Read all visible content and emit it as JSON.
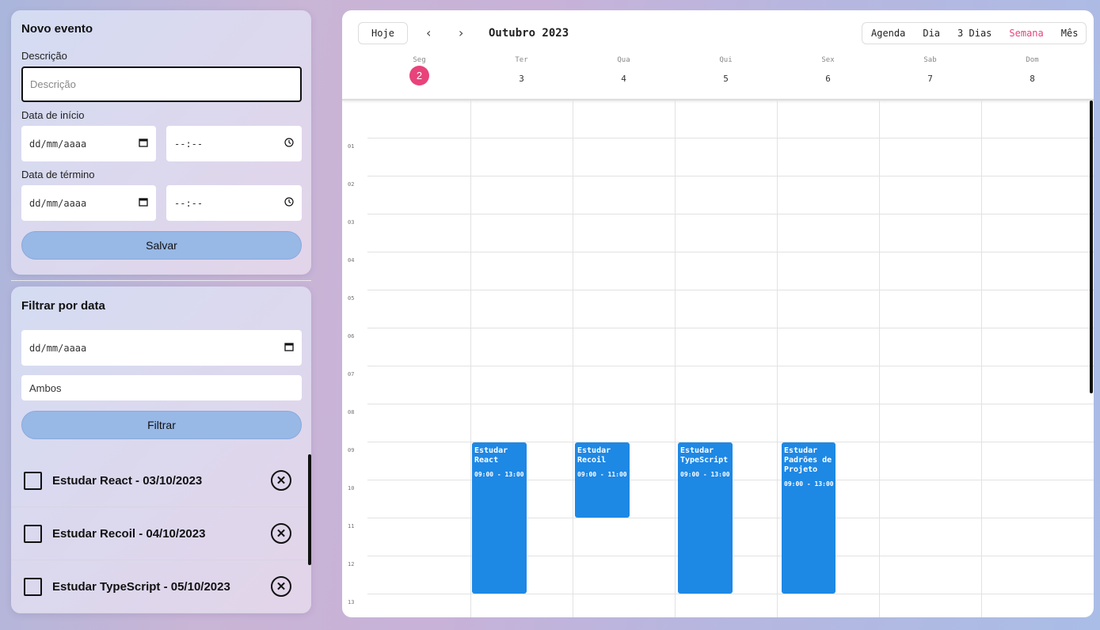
{
  "new_event": {
    "title": "Novo evento",
    "description_label": "Descrição",
    "description_placeholder": "Descrição",
    "start_label": "Data de início",
    "start_date": "dd/mm/aaaa",
    "start_time": "--:--",
    "end_label": "Data de término",
    "end_date": "dd/mm/aaaa",
    "end_time": "--:--",
    "save_label": "Salvar"
  },
  "filter": {
    "title": "Filtrar por data",
    "date": "dd/mm/aaaa",
    "select_value": "Ambos",
    "filter_label": "Filtrar",
    "items": [
      {
        "label": "Estudar React - 03/10/2023"
      },
      {
        "label": "Estudar Recoil - 04/10/2023"
      },
      {
        "label": "Estudar TypeScript - 05/10/2023"
      }
    ]
  },
  "icons": {
    "calendar": "calendar-icon",
    "clock": "clock-icon",
    "delete": "close-circle-icon",
    "prev": "chevron-left-icon",
    "next": "chevron-right-icon"
  },
  "calendar": {
    "today_label": "Hoje",
    "prev_glyph": "‹",
    "next_glyph": "›",
    "month_title": "Outubro 2023",
    "views": [
      "Agenda",
      "Dia",
      "3 Dias",
      "Semana",
      "Mês"
    ],
    "active_view": "Semana",
    "days": [
      {
        "name": "Seg",
        "num": "2"
      },
      {
        "name": "Ter",
        "num": "3"
      },
      {
        "name": "Qua",
        "num": "4"
      },
      {
        "name": "Qui",
        "num": "5"
      },
      {
        "name": "Sex",
        "num": "6"
      },
      {
        "name": "Sab",
        "num": "7"
      },
      {
        "name": "Dom",
        "num": "8"
      }
    ],
    "hours": [
      "01",
      "02",
      "03",
      "04",
      "05",
      "06",
      "07",
      "08",
      "09",
      "10",
      "11",
      "12",
      "13"
    ],
    "events": [
      {
        "title": "Estudar React",
        "time": "09:00 - 13:00"
      },
      {
        "title": "Estudar Recoil",
        "time": "09:00 - 11:00"
      },
      {
        "title": "Estudar TypeScript",
        "time": "09:00 - 13:00"
      },
      {
        "title": "Estudar Padrões de Projeto",
        "time": "09:00 - 13:00"
      }
    ]
  },
  "colors": {
    "accent": "#e8437a",
    "event": "#1e88e5",
    "button": "#98b8e6"
  }
}
